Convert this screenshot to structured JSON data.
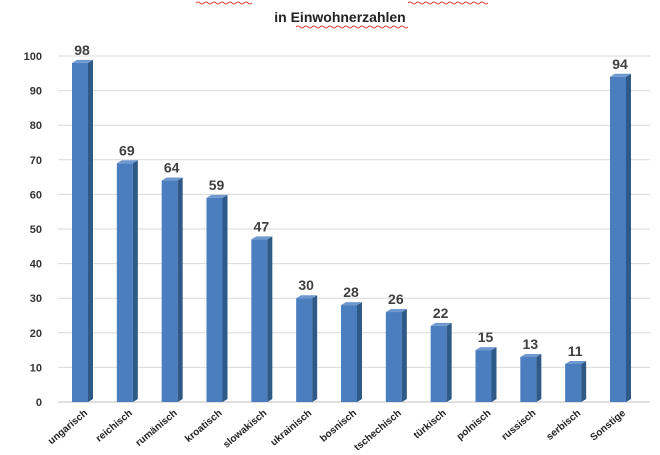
{
  "chart_data": {
    "type": "bar",
    "title": "in Einwohnerzahlen",
    "categories": [
      "ungarisch",
      "reichisch",
      "rumänisch",
      "kroatisch",
      "slowakisch",
      "ukrainisch",
      "bosnisch",
      "tschechisch",
      "türkisch",
      "polnisch",
      "russisch",
      "serbisch",
      "Sonstige"
    ],
    "values": [
      98,
      69,
      64,
      59,
      47,
      30,
      28,
      26,
      22,
      15,
      13,
      11,
      94
    ],
    "xlabel": "",
    "ylabel": "",
    "ylim": [
      0,
      100
    ],
    "yticks": [
      0,
      10,
      20,
      30,
      40,
      50,
      60,
      70,
      80,
      90,
      100
    ],
    "grid": true,
    "legend": "none",
    "colors": {
      "bar_front": "#4a7ebf",
      "bar_side": "#2f5987",
      "bar_top": "#6f98cf",
      "grid": "#d9d9d9"
    }
  }
}
